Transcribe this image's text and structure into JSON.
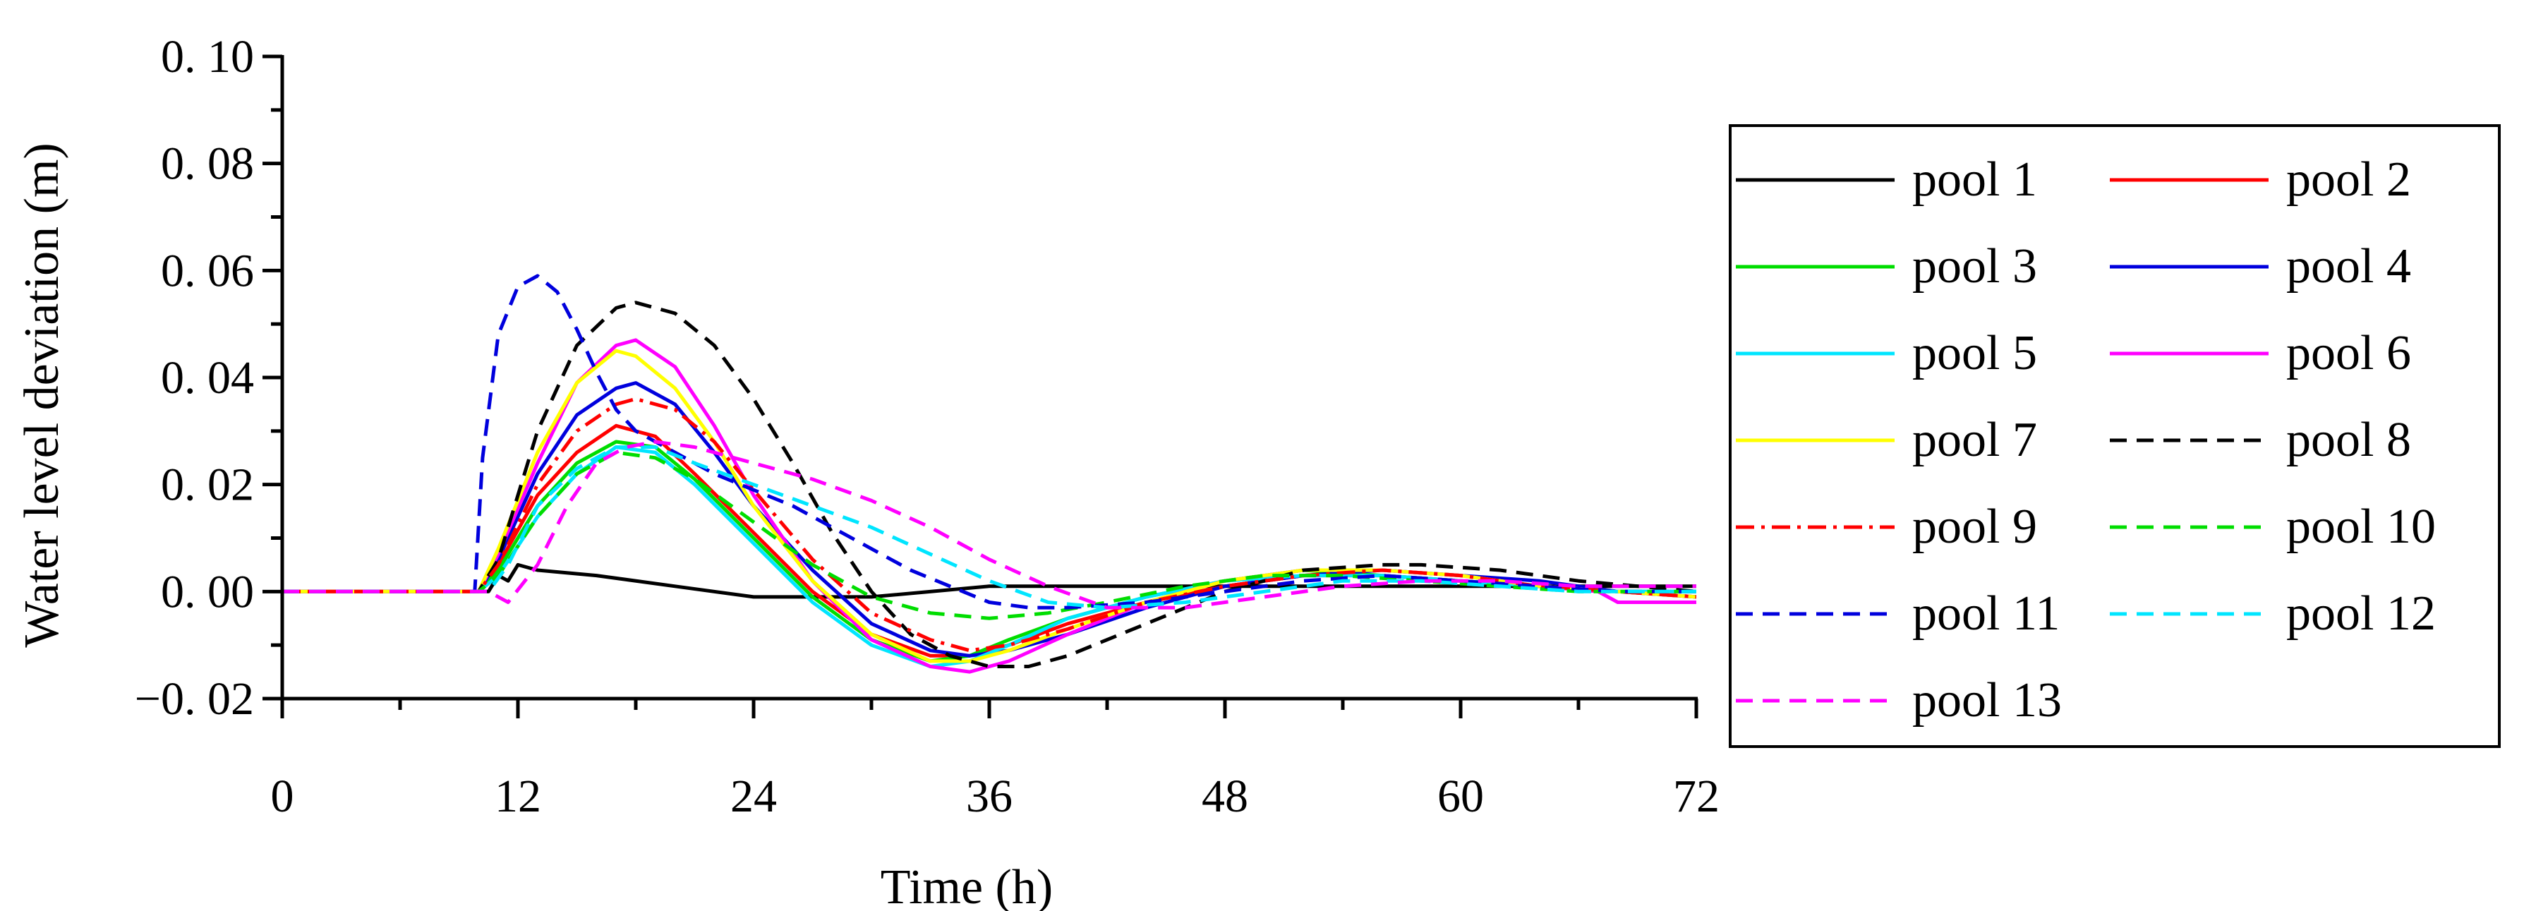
{
  "chart_data": {
    "type": "line",
    "title": "",
    "xlabel": "Time (h)",
    "ylabel": "Water level deviation (m)",
    "xlim": [
      0,
      72
    ],
    "ylim": [
      -0.02,
      0.1
    ],
    "x_ticks": [
      0,
      12,
      24,
      36,
      48,
      60,
      72
    ],
    "x_tick_labels": [
      "0",
      "12",
      "24",
      "36",
      "48",
      "60",
      "72"
    ],
    "y_ticks": [
      -0.02,
      0.0,
      0.02,
      0.04,
      0.06,
      0.08,
      0.1
    ],
    "y_tick_labels": [
      "−0. 02",
      "0. 00",
      "0. 02",
      "0. 04",
      "0. 06",
      "0. 08",
      "0. 10"
    ],
    "grid": false,
    "legend_position": "right",
    "series": [
      {
        "name": "pool 1",
        "color": "#000000",
        "dash": "solid",
        "x": [
          0,
          10.5,
          11,
          11.5,
          12,
          13,
          16,
          20,
          24,
          30,
          36,
          48,
          60,
          72
        ],
        "y": [
          0,
          0,
          0.003,
          0.002,
          0.005,
          0.004,
          0.003,
          0.001,
          -0.001,
          -0.001,
          0.001,
          0.001,
          0.001,
          0.001
        ]
      },
      {
        "name": "pool 2",
        "color": "#ff0000",
        "dash": "solid",
        "x": [
          0,
          10,
          11,
          13,
          15,
          17,
          19,
          21,
          24,
          27,
          30,
          33,
          35,
          37,
          40,
          44,
          48,
          52,
          56,
          60,
          64,
          68,
          72
        ],
        "y": [
          0,
          0,
          0.005,
          0.018,
          0.026,
          0.031,
          0.029,
          0.022,
          0.011,
          0.0,
          -0.008,
          -0.012,
          -0.012,
          -0.01,
          -0.006,
          -0.002,
          0.001,
          0.003,
          0.003,
          0.002,
          0.001,
          0.0,
          -0.001
        ]
      },
      {
        "name": "pool 3",
        "color": "#00dd00",
        "dash": "solid",
        "x": [
          0,
          10,
          11,
          13,
          15,
          17,
          19,
          21,
          24,
          27,
          30,
          33,
          35,
          37,
          40,
          44,
          48,
          52,
          56,
          60,
          64,
          68,
          72
        ],
        "y": [
          0,
          0,
          0.004,
          0.016,
          0.024,
          0.028,
          0.027,
          0.021,
          0.01,
          -0.001,
          -0.009,
          -0.013,
          -0.012,
          -0.009,
          -0.005,
          -0.001,
          0.002,
          0.004,
          0.003,
          0.002,
          0.001,
          0.0,
          0.0
        ]
      },
      {
        "name": "pool 4",
        "color": "#0000dd",
        "dash": "solid",
        "x": [
          0,
          10,
          11,
          13,
          15,
          17,
          18,
          20,
          22,
          24,
          27,
          30,
          33,
          35,
          37,
          40,
          44,
          48,
          52,
          56,
          60,
          64,
          68,
          72
        ],
        "y": [
          0,
          0,
          0.006,
          0.022,
          0.033,
          0.038,
          0.039,
          0.035,
          0.026,
          0.016,
          0.004,
          -0.006,
          -0.011,
          -0.012,
          -0.011,
          -0.008,
          -0.003,
          0.001,
          0.003,
          0.004,
          0.003,
          0.002,
          0.0,
          -0.001
        ]
      },
      {
        "name": "pool 5",
        "color": "#00e5ff",
        "dash": "solid",
        "x": [
          0,
          10,
          11,
          13,
          15,
          17,
          19,
          21,
          24,
          27,
          30,
          33,
          35,
          37,
          40,
          44,
          48,
          52,
          56,
          60,
          64,
          68,
          72
        ],
        "y": [
          0,
          0,
          0.003,
          0.014,
          0.022,
          0.027,
          0.026,
          0.02,
          0.009,
          -0.002,
          -0.01,
          -0.014,
          -0.013,
          -0.01,
          -0.005,
          -0.001,
          0.002,
          0.003,
          0.003,
          0.002,
          0.001,
          0.0,
          0.0
        ]
      },
      {
        "name": "pool 6",
        "color": "#ff00ff",
        "dash": "solid",
        "x": [
          0,
          10,
          11,
          13,
          15,
          17,
          18,
          20,
          22,
          24,
          27,
          30,
          33,
          35,
          37,
          40,
          44,
          48,
          52,
          56,
          60,
          64,
          67,
          68,
          72
        ],
        "y": [
          0,
          0,
          0.007,
          0.024,
          0.039,
          0.046,
          0.047,
          0.042,
          0.031,
          0.018,
          0.002,
          -0.009,
          -0.014,
          -0.015,
          -0.013,
          -0.008,
          -0.002,
          0.002,
          0.004,
          0.004,
          0.003,
          0.001,
          0.0,
          -0.002,
          -0.002
        ]
      },
      {
        "name": "pool 7",
        "color": "#ffff00",
        "dash": "solid",
        "x": [
          0,
          10,
          11,
          13,
          15,
          17,
          18,
          20,
          22,
          24,
          27,
          30,
          33,
          35,
          37,
          40,
          44,
          48,
          52,
          56,
          60,
          64,
          68,
          72
        ],
        "y": [
          0,
          0,
          0.008,
          0.026,
          0.039,
          0.045,
          0.044,
          0.038,
          0.028,
          0.016,
          0.002,
          -0.008,
          -0.013,
          -0.013,
          -0.011,
          -0.007,
          -0.002,
          0.002,
          0.004,
          0.004,
          0.003,
          0.001,
          0.0,
          -0.001
        ]
      },
      {
        "name": "pool 8",
        "color": "#000000",
        "dash": "dashed",
        "x": [
          0,
          10,
          11,
          13,
          15,
          17,
          18,
          20,
          22,
          24,
          26,
          28,
          30,
          32,
          34,
          36,
          38,
          40,
          44,
          48,
          52,
          56,
          58,
          62,
          66,
          72
        ],
        "y": [
          0,
          0,
          0.006,
          0.03,
          0.046,
          0.053,
          0.054,
          0.052,
          0.046,
          0.036,
          0.024,
          0.011,
          0.0,
          -0.008,
          -0.012,
          -0.014,
          -0.014,
          -0.012,
          -0.006,
          0.0,
          0.004,
          0.005,
          0.005,
          0.004,
          0.002,
          0.0
        ]
      },
      {
        "name": "pool 9",
        "color": "#ff0000",
        "dash": "dashdot",
        "x": [
          0,
          10,
          11,
          13,
          15,
          17,
          18,
          20,
          22,
          24,
          27,
          30,
          33,
          35,
          37,
          40,
          44,
          48,
          52,
          56,
          60,
          64,
          68,
          72
        ],
        "y": [
          0,
          0,
          0.005,
          0.02,
          0.03,
          0.035,
          0.036,
          0.034,
          0.028,
          0.019,
          0.006,
          -0.004,
          -0.009,
          -0.011,
          -0.01,
          -0.007,
          -0.002,
          0.001,
          0.003,
          0.004,
          0.003,
          0.001,
          0.0,
          -0.001
        ]
      },
      {
        "name": "pool 10",
        "color": "#00dd00",
        "dash": "dashed",
        "x": [
          0,
          10,
          11,
          13,
          15,
          17,
          19,
          21,
          24,
          27,
          30,
          33,
          36,
          39,
          42,
          46,
          50,
          54,
          58,
          62,
          66,
          72
        ],
        "y": [
          0,
          0,
          0.003,
          0.014,
          0.022,
          0.026,
          0.025,
          0.021,
          0.013,
          0.005,
          -0.001,
          -0.004,
          -0.005,
          -0.004,
          -0.002,
          0.001,
          0.003,
          0.003,
          0.002,
          0.001,
          0.0,
          0.0
        ]
      },
      {
        "name": "pool 11",
        "color": "#0000dd",
        "dash": "dashed",
        "x": [
          0,
          9.8,
          10.2,
          11,
          12,
          13,
          14,
          15,
          16,
          17,
          18,
          20,
          22,
          24,
          26,
          28,
          30,
          32,
          34,
          36,
          38,
          40,
          44,
          48,
          52,
          56,
          60,
          64,
          68,
          72
        ],
        "y": [
          0,
          0,
          0.025,
          0.048,
          0.057,
          0.059,
          0.056,
          0.049,
          0.041,
          0.034,
          0.03,
          0.026,
          0.022,
          0.019,
          0.016,
          0.012,
          0.008,
          0.004,
          0.001,
          -0.002,
          -0.003,
          -0.003,
          -0.002,
          0.0,
          0.002,
          0.003,
          0.002,
          0.001,
          0.0,
          0.0
        ]
      },
      {
        "name": "pool 12",
        "color": "#00e5ff",
        "dash": "dashed",
        "x": [
          0,
          10.5,
          11.5,
          13,
          15,
          17,
          19,
          21,
          24,
          27,
          30,
          33,
          36,
          39,
          42,
          46,
          50,
          54,
          58,
          62,
          66,
          72
        ],
        "y": [
          0,
          0,
          0.005,
          0.016,
          0.023,
          0.027,
          0.027,
          0.024,
          0.02,
          0.016,
          0.012,
          0.007,
          0.002,
          -0.002,
          -0.003,
          -0.002,
          0.0,
          0.002,
          0.002,
          0.001,
          0.0,
          0.0
        ]
      },
      {
        "name": "pool 13",
        "color": "#ff00ff",
        "dash": "dashed",
        "x": [
          0,
          10.5,
          11.5,
          13,
          14.5,
          16,
          17.5,
          19,
          21,
          24,
          27,
          30,
          33,
          36,
          39,
          42,
          46,
          50,
          54,
          58,
          62,
          66,
          72
        ],
        "y": [
          0,
          0,
          -0.002,
          0.005,
          0.016,
          0.024,
          0.027,
          0.028,
          0.027,
          0.024,
          0.021,
          0.017,
          0.012,
          0.006,
          0.001,
          -0.003,
          -0.003,
          -0.001,
          0.001,
          0.002,
          0.002,
          0.001,
          0.001
        ]
      }
    ]
  }
}
